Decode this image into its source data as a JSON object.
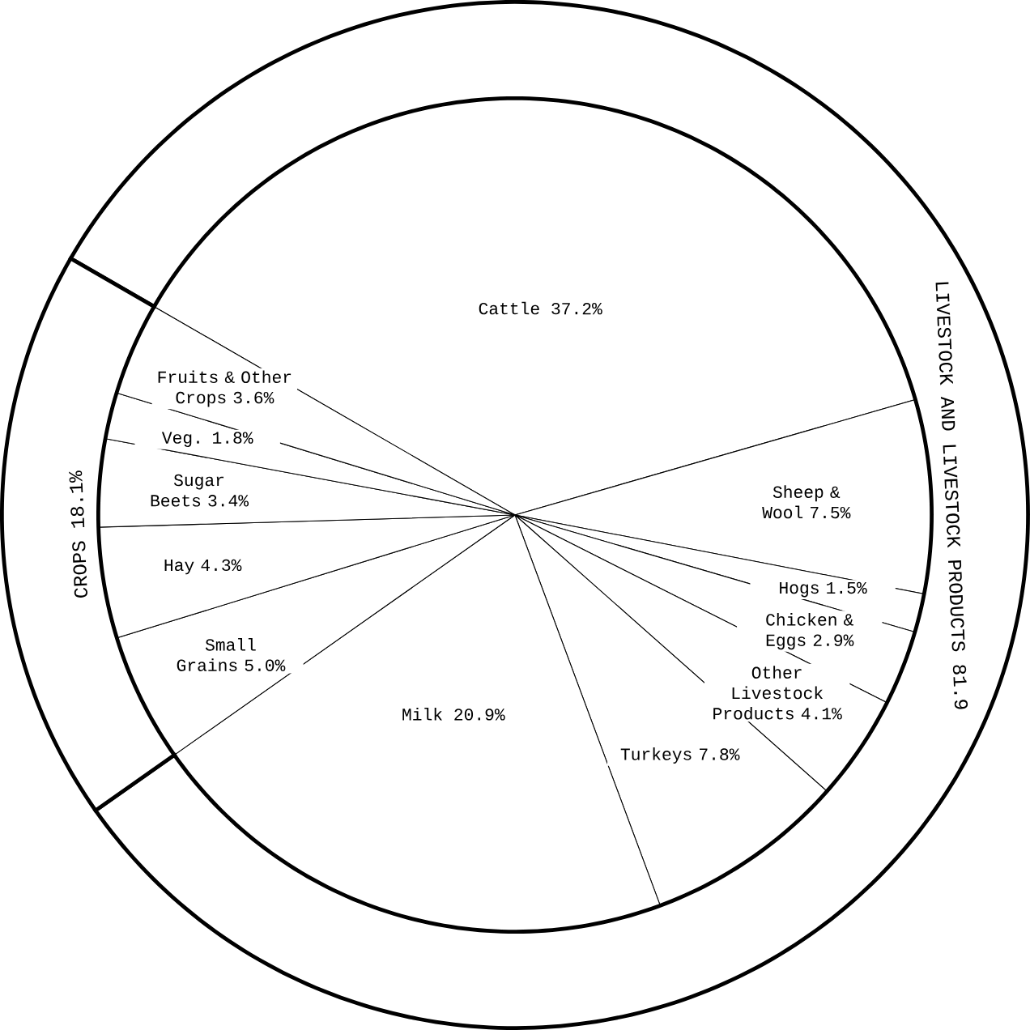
{
  "chart_data": [
    {
      "type": "pie",
      "categories": [
        "Cattle",
        "Sheep & Wool",
        "Hogs",
        "Chicken & Eggs",
        "Other Livestock Products",
        "Turkeys",
        "Milk",
        "Small Grains",
        "Hay",
        "Sugar Beets",
        "Veg.",
        "Fruits & Other Crops"
      ],
      "values": [
        37.2,
        7.5,
        1.5,
        2.9,
        4.1,
        7.8,
        20.9,
        5.0,
        4.3,
        3.4,
        1.8,
        3.6
      ],
      "value_labels": [
        "37.2%",
        "7.5%",
        "1.5%",
        "2.9%",
        "4.1%",
        "7.8%",
        "20.9%",
        "5.0%",
        "4.3%",
        "3.4%",
        "1.8%",
        "3.6%"
      ],
      "colors": [
        "#ffffff",
        "#ffffff",
        "#ffffff",
        "#ffffff",
        "#ffffff",
        "#ffffff",
        "#ffffff",
        "#ffffff",
        "#ffffff",
        "#ffffff",
        "#ffffff",
        "#ffffff"
      ]
    },
    {
      "type": "donut",
      "categories": [
        "LIVESTOCK AND LIVESTOCK PRODUCTS",
        "CROPS"
      ],
      "values": [
        81.9,
        18.1
      ],
      "value_labels": [
        "81.9",
        "18.1%"
      ],
      "colors": [
        "#ffffff",
        "#ffffff"
      ]
    }
  ]
}
